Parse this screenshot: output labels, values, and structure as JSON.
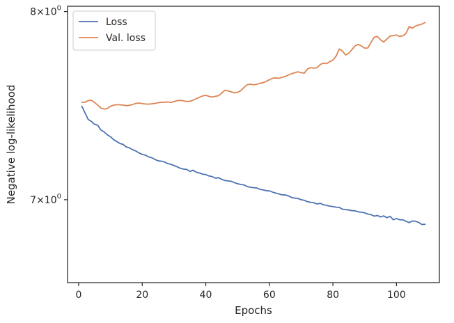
{
  "chart_data": {
    "type": "line",
    "xlabel": "Epochs",
    "ylabel": "Negative log-likelihood",
    "xlim": [
      -3.5,
      113.5
    ],
    "ylim": [
      6.6,
      8.03
    ],
    "yscale": "log",
    "x_ticks": [
      0,
      20,
      40,
      60,
      80,
      100
    ],
    "y_ticks": [
      {
        "value": 7,
        "base": "7",
        "exponent": "0"
      },
      {
        "value": 8,
        "base": "8",
        "exponent": "0"
      }
    ],
    "legend_position": "upper-left",
    "grid": false,
    "series": [
      {
        "name": "Loss",
        "color": "#4c72b0",
        "x": [
          1,
          2,
          3,
          4,
          5,
          6,
          7,
          8,
          9,
          10,
          11,
          12,
          13,
          14,
          15,
          16,
          17,
          18,
          19,
          20,
          21,
          22,
          23,
          24,
          25,
          26,
          27,
          28,
          29,
          30,
          31,
          32,
          33,
          34,
          35,
          36,
          37,
          38,
          39,
          40,
          41,
          42,
          43,
          44,
          45,
          46,
          47,
          48,
          49,
          50,
          51,
          52,
          53,
          54,
          55,
          56,
          57,
          58,
          59,
          60,
          61,
          62,
          63,
          64,
          65,
          66,
          67,
          68,
          69,
          70,
          71,
          72,
          73,
          74,
          75,
          76,
          77,
          78,
          79,
          80,
          81,
          82,
          83,
          84,
          85,
          86,
          87,
          88,
          89,
          90,
          91,
          92,
          93,
          94,
          95,
          96,
          97,
          98,
          99,
          100,
          101,
          102,
          103,
          104,
          105,
          106,
          107,
          108,
          109
        ],
        "y": [
          7.48,
          7.445,
          7.41,
          7.4,
          7.385,
          7.38,
          7.355,
          7.345,
          7.33,
          7.32,
          7.305,
          7.295,
          7.285,
          7.28,
          7.267,
          7.262,
          7.253,
          7.246,
          7.236,
          7.229,
          7.225,
          7.216,
          7.212,
          7.203,
          7.196,
          7.194,
          7.19,
          7.182,
          7.178,
          7.172,
          7.165,
          7.158,
          7.154,
          7.152,
          7.142,
          7.148,
          7.138,
          7.134,
          7.128,
          7.126,
          7.119,
          7.116,
          7.108,
          7.11,
          7.102,
          7.096,
          7.094,
          7.092,
          7.085,
          7.08,
          7.076,
          7.074,
          7.066,
          7.062,
          7.06,
          7.059,
          7.052,
          7.049,
          7.045,
          7.044,
          7.038,
          7.033,
          7.029,
          7.024,
          7.024,
          7.019,
          7.011,
          7.008,
          7.006,
          7.0,
          6.997,
          6.99,
          6.987,
          6.985,
          6.979,
          6.982,
          6.975,
          6.972,
          6.968,
          6.966,
          6.963,
          6.962,
          6.953,
          6.951,
          6.949,
          6.946,
          6.945,
          6.94,
          6.938,
          6.935,
          6.929,
          6.926,
          6.919,
          6.922,
          6.915,
          6.92,
          6.911,
          6.918,
          6.901,
          6.907,
          6.901,
          6.901,
          6.894,
          6.887,
          6.895,
          6.894,
          6.888,
          6.878,
          6.879
        ]
      },
      {
        "name": "Val. loss",
        "color": "#dd8452",
        "x": [
          1,
          2,
          3,
          4,
          5,
          6,
          7,
          8,
          9,
          10,
          11,
          12,
          13,
          14,
          15,
          16,
          17,
          18,
          19,
          20,
          21,
          22,
          23,
          24,
          25,
          26,
          27,
          28,
          29,
          30,
          31,
          32,
          33,
          34,
          35,
          36,
          37,
          38,
          39,
          40,
          41,
          42,
          43,
          44,
          45,
          46,
          47,
          48,
          49,
          50,
          51,
          52,
          53,
          54,
          55,
          56,
          57,
          58,
          59,
          60,
          61,
          62,
          63,
          64,
          65,
          66,
          67,
          68,
          69,
          70,
          71,
          72,
          73,
          74,
          75,
          76,
          77,
          78,
          79,
          80,
          81,
          82,
          83,
          84,
          85,
          86,
          87,
          88,
          89,
          90,
          91,
          92,
          93,
          94,
          95,
          96,
          97,
          98,
          99,
          100,
          101,
          102,
          103,
          104,
          105,
          106,
          107,
          108,
          109
        ],
        "y": [
          7.5,
          7.502,
          7.51,
          7.512,
          7.5,
          7.486,
          7.47,
          7.465,
          7.468,
          7.48,
          7.486,
          7.488,
          7.488,
          7.486,
          7.483,
          7.485,
          7.489,
          7.495,
          7.497,
          7.494,
          7.492,
          7.491,
          7.493,
          7.495,
          7.499,
          7.501,
          7.501,
          7.503,
          7.5,
          7.505,
          7.51,
          7.511,
          7.509,
          7.505,
          7.507,
          7.512,
          7.52,
          7.528,
          7.535,
          7.538,
          7.533,
          7.529,
          7.533,
          7.536,
          7.55,
          7.565,
          7.562,
          7.557,
          7.551,
          7.554,
          7.563,
          7.58,
          7.595,
          7.598,
          7.595,
          7.597,
          7.603,
          7.606,
          7.613,
          7.622,
          7.63,
          7.632,
          7.63,
          7.635,
          7.64,
          7.648,
          7.655,
          7.66,
          7.665,
          7.66,
          7.658,
          7.68,
          7.688,
          7.685,
          7.687,
          7.705,
          7.712,
          7.71,
          7.72,
          7.729,
          7.751,
          7.79,
          7.779,
          7.757,
          7.767,
          7.787,
          7.808,
          7.816,
          7.806,
          7.795,
          7.796,
          7.827,
          7.856,
          7.86,
          7.841,
          7.829,
          7.846,
          7.862,
          7.864,
          7.868,
          7.86,
          7.863,
          7.877,
          7.915,
          7.906,
          7.918,
          7.924,
          7.929,
          7.938
        ]
      }
    ]
  }
}
